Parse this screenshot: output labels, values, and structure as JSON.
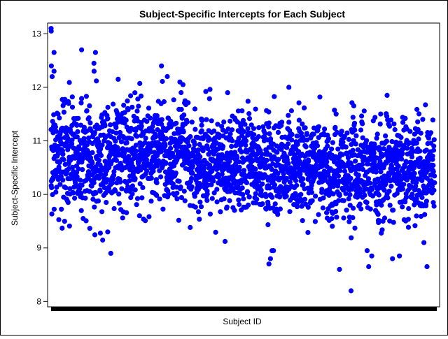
{
  "chart_data": {
    "type": "scatter",
    "title": "Subject-Specific Intercepts for Each Subject",
    "xlabel": "Subject ID",
    "ylabel": "Subject-Specific Intercept",
    "ylim": [
      7.9,
      13.2
    ],
    "yticks": [
      8,
      9,
      10,
      11,
      12,
      13
    ],
    "point_color": "#0000ff",
    "grid": false,
    "legend": "none",
    "n_subjects": 2500,
    "series": [
      {
        "x": [
          1,
          2,
          3,
          8,
          20,
          20,
          200,
          280,
          290,
          370,
          390,
          720,
          840,
          860,
          1420,
          1430,
          1440,
          1450,
          1550,
          1880,
          1955,
          2060,
          2070,
          2090,
          2190,
          2225,
          2270,
          2430,
          2450
        ],
        "values": [
          13.1,
          13.05,
          12.4,
          12.2,
          12.65,
          12.3,
          12.7,
          12.45,
          12.65,
          9.3,
          8.9,
          12.4,
          12.1,
          12.05,
          8.7,
          8.8,
          8.95,
          8.95,
          12.0,
          8.6,
          8.2,
          8.95,
          8.65,
          8.85,
          11.85,
          8.8,
          8.85,
          9.1,
          8.65
        ]
      }
    ],
    "cloud_profile": {
      "segments": [
        {
          "x_start": 1,
          "x_end": 400,
          "center": 10.7,
          "spread": 0.55
        },
        {
          "x_start": 400,
          "x_end": 900,
          "center": 10.8,
          "spread": 0.5
        },
        {
          "x_start": 900,
          "x_end": 1300,
          "center": 10.6,
          "spread": 0.45
        },
        {
          "x_start": 1300,
          "x_end": 1800,
          "center": 10.55,
          "spread": 0.45
        },
        {
          "x_start": 1800,
          "x_end": 2100,
          "center": 10.4,
          "spread": 0.45
        },
        {
          "x_start": 2100,
          "x_end": 2500,
          "center": 10.5,
          "spread": 0.45
        }
      ]
    }
  }
}
